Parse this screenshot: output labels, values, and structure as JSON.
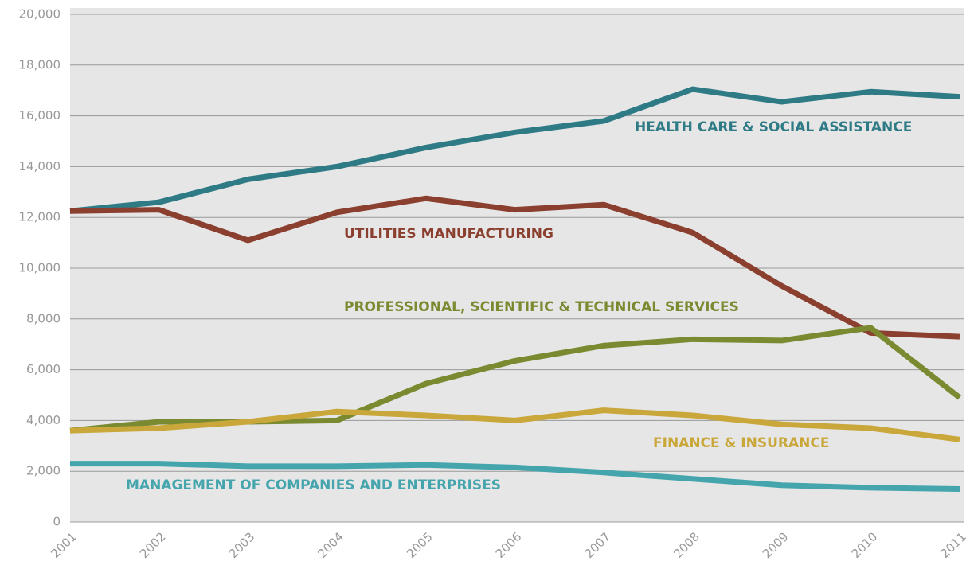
{
  "chart_data": {
    "type": "line",
    "x": [
      "2001",
      "2002",
      "2003",
      "2004",
      "2005",
      "2006",
      "2007",
      "2008",
      "2009",
      "2010",
      "2011"
    ],
    "series": [
      {
        "name": "HEALTH CARE & SOCIAL ASSISTANCE",
        "color": "#2e7b86",
        "values": [
          12250,
          12600,
          13500,
          14000,
          14750,
          15350,
          15800,
          17050,
          16550,
          16950,
          16750
        ]
      },
      {
        "name": "UTILITIES MANUFACTURING",
        "color": "#8b3f2e",
        "values": [
          12250,
          12300,
          11100,
          12200,
          12750,
          12300,
          12500,
          11400,
          9300,
          7450,
          7300
        ]
      },
      {
        "name": "PROFESSIONAL, SCIENTIFIC & TECHNICAL SERVICES",
        "color": "#7a8a30",
        "values": [
          3600,
          3950,
          3950,
          4000,
          5450,
          6350,
          6950,
          7200,
          7150,
          7650,
          4900
        ]
      },
      {
        "name": "FINANCE & INSURANCE",
        "color": "#c9a73a",
        "values": [
          3600,
          3700,
          3950,
          4350,
          4200,
          4000,
          4400,
          4200,
          3850,
          3700,
          3250
        ]
      },
      {
        "name": "MANAGEMENT OF COMPANIES AND ENTERPRISES",
        "color": "#45a5ad",
        "values": [
          2300,
          2300,
          2200,
          2200,
          2250,
          2150,
          1950,
          1700,
          1450,
          1350,
          1300
        ]
      }
    ],
    "ylim": [
      0,
      20000
    ],
    "yticks": [
      0,
      {
        "value": 2000,
        "label": "2,000"
      },
      {
        "value": 4000,
        "label": "4,000"
      },
      {
        "value": 6000,
        "label": "6,000"
      },
      {
        "value": 8000,
        "label": "8,000"
      },
      {
        "value": 10000,
        "label": "10,000"
      },
      {
        "value": 12000,
        "label": "12,000"
      },
      {
        "value": 14000,
        "label": "14,000"
      },
      {
        "value": 16000,
        "label": "16,000"
      },
      {
        "value": 18000,
        "label": "18,000"
      },
      {
        "value": 20000,
        "label": "20,000"
      }
    ],
    "grid": true
  }
}
